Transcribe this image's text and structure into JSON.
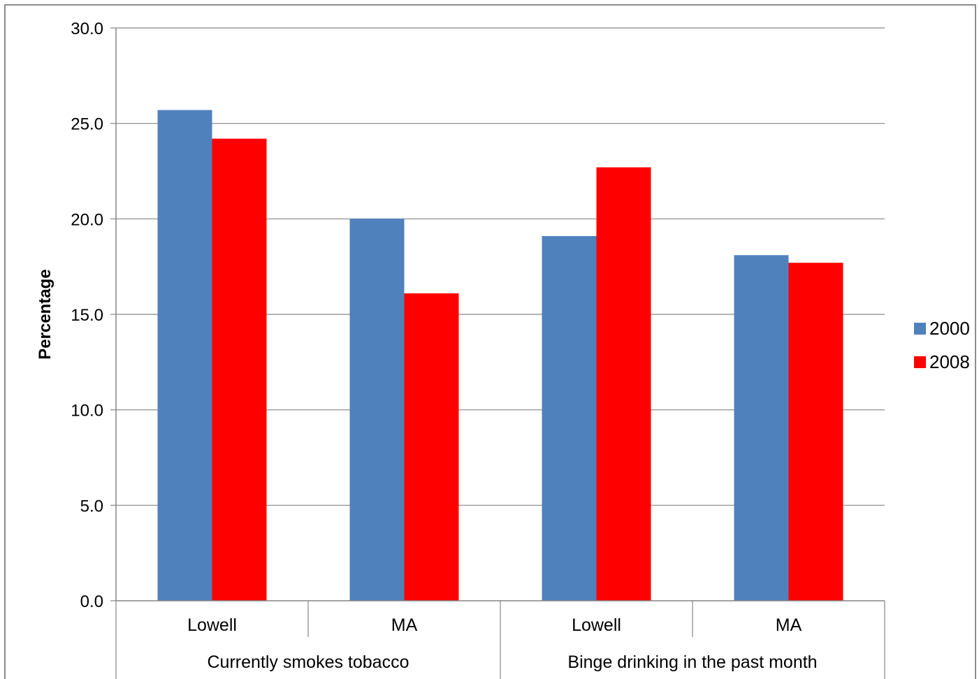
{
  "chart_data": {
    "type": "bar",
    "ylabel": "Percentage",
    "ylim": [
      0,
      30
    ],
    "yticks": [
      "0.0",
      "5.0",
      "10.0",
      "15.0",
      "20.0",
      "25.0",
      "30.0"
    ],
    "grid": true,
    "legend_position": "right",
    "categories": [
      "Lowell",
      "MA",
      "Lowell",
      "MA"
    ],
    "groups": [
      "Currently smokes tobacco",
      "Binge drinking in the past month"
    ],
    "series": [
      {
        "name": "2000",
        "color": "#4F81BD",
        "values": [
          25.7,
          20.0,
          19.1,
          18.1
        ]
      },
      {
        "name": "2008",
        "color": "#FF0000",
        "values": [
          24.2,
          16.1,
          22.7,
          17.7
        ]
      }
    ]
  }
}
